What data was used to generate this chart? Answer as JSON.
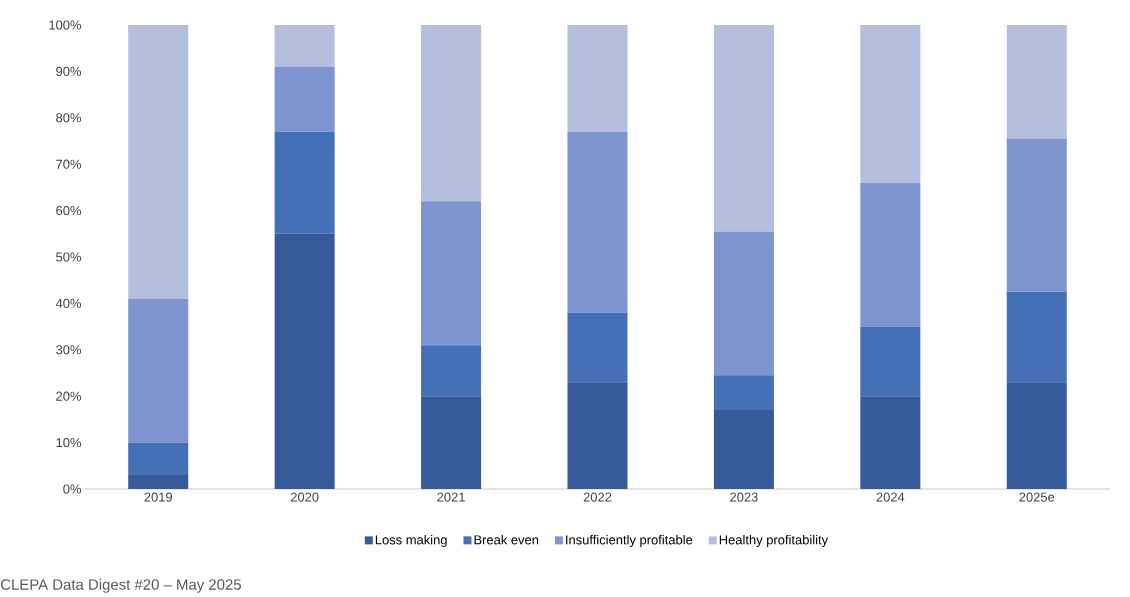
{
  "chart_data": {
    "type": "bar",
    "stacked": true,
    "categories": [
      "2019",
      "2020",
      "2021",
      "2022",
      "2023",
      "2024",
      "2025e"
    ],
    "series": [
      {
        "name": "Loss making",
        "color": "#365a9a",
        "values": [
          3,
          55,
          20,
          23,
          17,
          20,
          23
        ]
      },
      {
        "name": "Break even",
        "color": "#4470b8",
        "values": [
          7,
          22,
          11,
          15,
          7.5,
          15,
          19.5
        ]
      },
      {
        "name": "Insufficiently profitable",
        "color": "#7e94ce",
        "values": [
          31,
          14,
          31,
          39,
          31,
          31,
          33
        ]
      },
      {
        "name": "Healthy profitability",
        "color": "#b4bfde",
        "values": [
          59,
          9,
          38,
          23,
          44.5,
          34,
          24.5
        ]
      }
    ],
    "ylim": [
      0,
      100
    ],
    "yticks": [
      {
        "value": 0,
        "label": "0%"
      },
      {
        "value": 10,
        "label": "10%"
      },
      {
        "value": 20,
        "label": "20%"
      },
      {
        "value": 30,
        "label": "30%"
      },
      {
        "value": 40,
        "label": "40%"
      },
      {
        "value": 50,
        "label": "50%"
      },
      {
        "value": 60,
        "label": "60%"
      },
      {
        "value": 70,
        "label": "70%"
      },
      {
        "value": 80,
        "label": "80%"
      },
      {
        "value": 90,
        "label": "90%"
      },
      {
        "value": 100,
        "label": "100%"
      }
    ],
    "grid": false,
    "legend": "bottom",
    "annotations": [
      "CLEPA Data Digest #20 – May 2025"
    ]
  }
}
